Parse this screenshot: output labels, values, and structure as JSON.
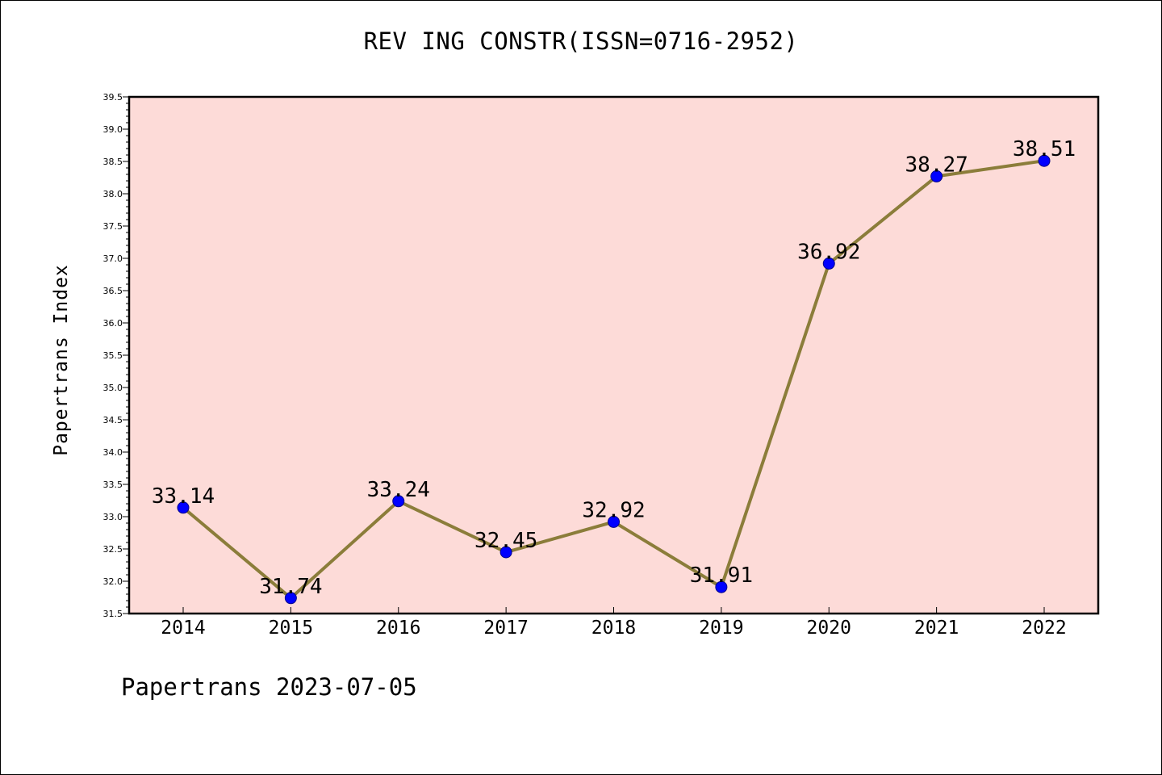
{
  "title": "REV ING CONSTR(ISSN=0716-2952)",
  "ylabel": "Papertrans Index",
  "footer": "Papertrans 2023-07-05",
  "colors": {
    "plot_background": "#fddbd8",
    "line": "#8b7d3a",
    "marker": "#0000ff",
    "axis": "#000000"
  },
  "chart_data": {
    "type": "line",
    "title": "REV ING CONSTR(ISSN=0716-2952)",
    "xlabel": "",
    "ylabel": "Papertrans Index",
    "categories": [
      "2014",
      "2015",
      "2016",
      "2017",
      "2018",
      "2019",
      "2020",
      "2021",
      "2022"
    ],
    "values": [
      33.14,
      31.74,
      33.24,
      32.45,
      32.92,
      31.91,
      36.92,
      38.27,
      38.51
    ],
    "data_labels": [
      "33.14",
      "31.74",
      "33.24",
      "32.45",
      "32.92",
      "31.91",
      "36.92",
      "38.27",
      "38.51"
    ],
    "ylim": [
      31.5,
      39.5
    ],
    "yticks": [
      "31.5",
      "32.0",
      "32.5",
      "33.0",
      "33.5",
      "34.0",
      "34.5",
      "35.0",
      "35.5",
      "36.0",
      "36.5",
      "37.0",
      "37.5",
      "38.0",
      "38.5",
      "39.0",
      "39.5"
    ],
    "grid": false,
    "legend": "none"
  }
}
